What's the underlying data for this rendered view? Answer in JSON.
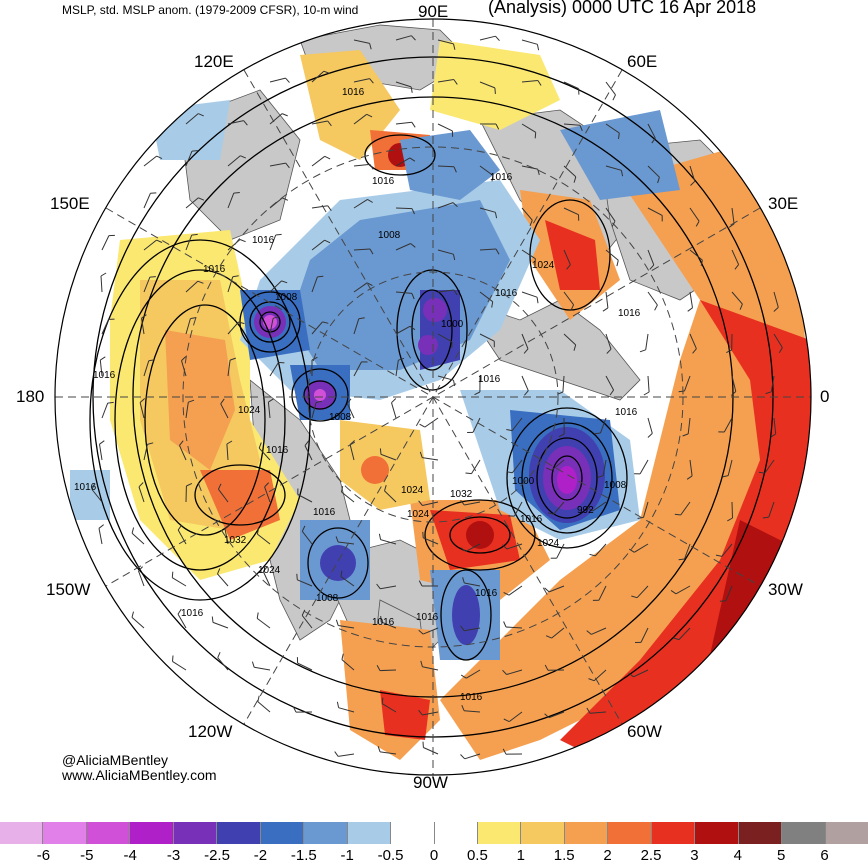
{
  "header": {
    "left": "MSLP, std. MSLP anom. (1979-2009 CFSR), 10-m wind",
    "right": "(Analysis) 0000 UTC 16 Apr 2018"
  },
  "longitudes": [
    "90E",
    "60E",
    "30E",
    "0",
    "30W",
    "60W",
    "90W",
    "120W",
    "150W",
    "180",
    "150E",
    "120E"
  ],
  "isobar_labels": [
    "1016",
    "1016",
    "1016",
    "1016",
    "1008",
    "1024",
    "1016",
    "1016",
    "1008",
    "1016",
    "1000",
    "1016",
    "1016",
    "1016",
    "1024",
    "1008",
    "1016",
    "1024",
    "1032",
    "1000",
    "1008",
    "1016",
    "992",
    "1024",
    "1024",
    "1032",
    "1016",
    "1008",
    "1024",
    "1016",
    "1016",
    "1016",
    "1016",
    "1016",
    "1016"
  ],
  "credits": [
    "@AliciaMBentley",
    "www.AliciaMBentley.com"
  ],
  "colorbar": {
    "colors": [
      "#e8b0e8",
      "#e080e8",
      "#d050d8",
      "#b020c8",
      "#7830b8",
      "#4040b0",
      "#3a6ec0",
      "#6a98d0",
      "#a8cce8",
      "#ffffff",
      "#ffffff",
      "#fbe870",
      "#f5c860",
      "#f5a050",
      "#f07038",
      "#e83020",
      "#b01010",
      "#7a2020",
      "#808080",
      "#b0a0a0"
    ],
    "ticks": [
      "-6",
      "-5",
      "-4",
      "-3",
      "-2.5",
      "-2",
      "-1.5",
      "-1",
      "-0.5",
      "0",
      "0.5",
      "1",
      "1.5",
      "2",
      "2.5",
      "3",
      "4",
      "5",
      "6"
    ]
  },
  "colors": {
    "land": "#c8c8c8",
    "isobar": "#000000",
    "grid": "#444444"
  }
}
